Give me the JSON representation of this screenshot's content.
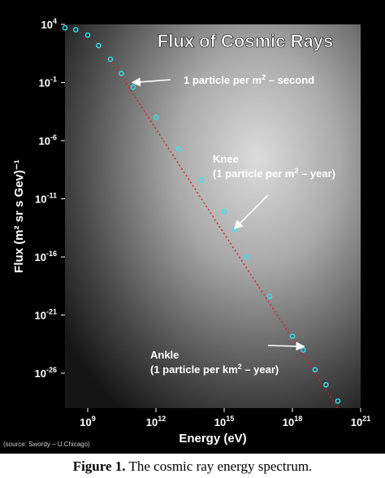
{
  "chart_data": {
    "type": "scatter",
    "title": "Flux of Cosmic Rays",
    "xlabel": "Energy (eV)",
    "ylabel": "Flux (m² sr s Gev)⁻¹",
    "x_scale": "log",
    "y_scale": "log",
    "xlim": [
      100000000.0,
      1e+21
    ],
    "ylim": [
      1e-29,
      10000.0
    ],
    "x_ticks": [
      {
        "value": 1000000000.0,
        "base": "10",
        "exp": "9"
      },
      {
        "value": 1000000000000.0,
        "base": "10",
        "exp": "12"
      },
      {
        "value": 1000000000000000.0,
        "base": "10",
        "exp": "15"
      },
      {
        "value": 1e+18,
        "base": "10",
        "exp": "18"
      },
      {
        "value": 1e+21,
        "base": "10",
        "exp": "21"
      }
    ],
    "y_ticks": [
      {
        "value": 10000.0,
        "base": "10",
        "exp": "4"
      },
      {
        "value": 0.1,
        "base": "10",
        "exp": "-1"
      },
      {
        "value": 1e-06,
        "base": "10",
        "exp": "-6"
      },
      {
        "value": 1e-11,
        "base": "10",
        "exp": "-11"
      },
      {
        "value": 1e-16,
        "base": "10",
        "exp": "-16"
      },
      {
        "value": 1e-21,
        "base": "10",
        "exp": "-21"
      },
      {
        "value": 1e-26,
        "base": "10",
        "exp": "-26"
      }
    ],
    "series": [
      {
        "color": "#33e6f0",
        "points": [
          {
            "x": 100000000.0,
            "y": 5000.0
          },
          {
            "x": 300000000.0,
            "y": 3500.0
          },
          {
            "x": 1000000000.0,
            "y": 1200.0
          },
          {
            "x": 3000000000.0,
            "y": 150.0
          },
          {
            "x": 10000000000.0,
            "y": 10.0
          },
          {
            "x": 30000000000.0,
            "y": 0.6
          },
          {
            "x": 100000000000.0,
            "y": 0.04
          },
          {
            "x": 1000000000000.0,
            "y": 0.0001
          },
          {
            "x": 10000000000000.0,
            "y": 2e-07
          },
          {
            "x": 100000000000000.0,
            "y": 4e-10
          },
          {
            "x": 1000000000000000.0,
            "y": 8e-13
          },
          {
            "x": 3000000000000000.0,
            "y": 2.5e-14
          },
          {
            "x": 1e+16,
            "y": 1e-16
          },
          {
            "x": 1e+17,
            "y": 4e-20
          },
          {
            "x": 1e+18,
            "y": 1.5e-23
          },
          {
            "x": 3e+18,
            "y": 1e-24
          },
          {
            "x": 1e+19,
            "y": 2e-26
          },
          {
            "x": 3e+19,
            "y": 1e-27
          },
          {
            "x": 1e+20,
            "y": 4e-29
          }
        ]
      }
    ],
    "reference_line": {
      "color": "#d42020",
      "style": "dotted",
      "points": [
        {
          "x": 10000000000.0,
          "y": 10.0
        },
        {
          "x": 1e+20,
          "y": 1e-29
        }
      ]
    },
    "annotations": [
      {
        "text": "1 particle per m",
        "sup": "2",
        "suffix": " – second",
        "arrow_to": {
          "x": 100000000000.0,
          "y": 0.1
        }
      },
      {
        "lines": [
          "Knee",
          "(1 particle per m"
        ],
        "sup": "2",
        "suffix": " – year)",
        "arrow_to": {
          "x": 3000000000000000.0,
          "y": 3e-14
        }
      },
      {
        "lines": [
          "Ankle",
          "(1 particle per km"
        ],
        "sup": "2",
        "suffix": " – year)",
        "arrow_to": {
          "x": 3e+18,
          "y": 2e-24
        }
      }
    ],
    "grid": false,
    "legend": "none"
  },
  "source_note": "(source: Swordy – U.Chicago)",
  "caption": {
    "label": "Figure 1.",
    "text": " The cosmic ray energy spectrum."
  }
}
